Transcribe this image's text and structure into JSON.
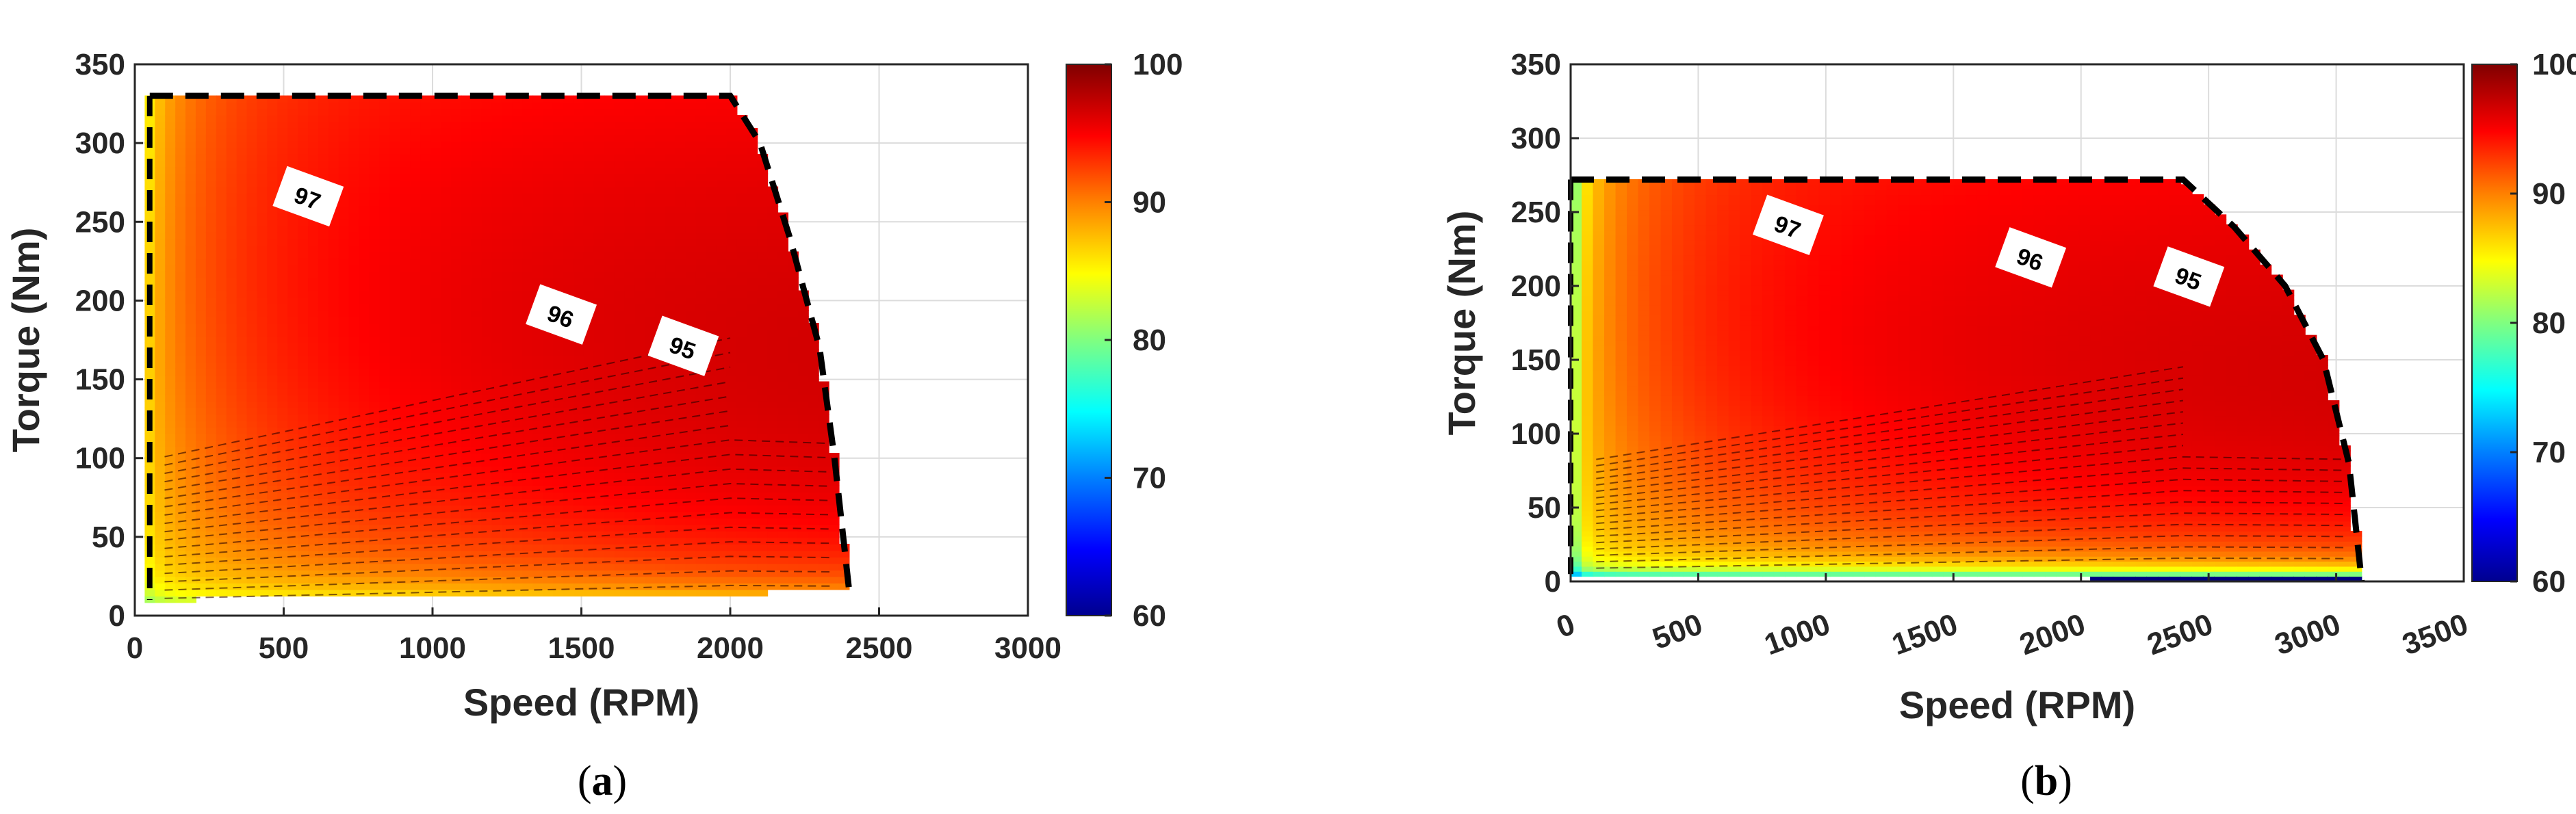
{
  "chart_data": [
    {
      "type": "heatmap",
      "panel_label": "a",
      "xlabel": "Speed (RPM)",
      "ylabel": "Torque (Nm)",
      "xlim": [
        0,
        3000
      ],
      "ylim": [
        0,
        350
      ],
      "xticks": [
        0,
        500,
        1000,
        1500,
        2000,
        2500,
        3000
      ],
      "yticks": [
        0,
        50,
        100,
        150,
        200,
        250,
        300,
        350
      ],
      "colorbar": {
        "min": 60,
        "max": 100,
        "ticks": [
          60,
          70,
          80,
          90,
          100
        ]
      },
      "grid": true,
      "max_torque": 330,
      "base_speed": 2000,
      "max_speed": 2400,
      "envelope": [
        [
          50,
          330
        ],
        [
          2000,
          330
        ],
        [
          2100,
          300
        ],
        [
          2200,
          240
        ],
        [
          2300,
          170
        ],
        [
          2350,
          100
        ],
        [
          2400,
          15
        ],
        [
          50,
          10
        ]
      ],
      "contour_labels": [
        {
          "text": "97",
          "x": 580,
          "y": 265
        },
        {
          "text": "96",
          "x": 1430,
          "y": 190
        },
        {
          "text": "95",
          "x": 1840,
          "y": 170
        }
      ]
    },
    {
      "type": "heatmap",
      "panel_label": "b",
      "xlabel": "Speed (RPM)",
      "ylabel": "Torque (Nm)",
      "xlim": [
        0,
        3500
      ],
      "ylim": [
        0,
        350
      ],
      "xticks": [
        0,
        500,
        1000,
        1500,
        2000,
        2500,
        3000,
        3500
      ],
      "yticks": [
        0,
        50,
        100,
        150,
        200,
        250,
        300,
        350
      ],
      "colorbar": {
        "min": 60,
        "max": 100,
        "ticks": [
          60,
          70,
          80,
          90,
          100
        ]
      },
      "grid": true,
      "max_torque": 272,
      "base_speed": 2400,
      "max_speed": 3100,
      "envelope": [
        [
          0,
          272
        ],
        [
          2400,
          272
        ],
        [
          2600,
          240
        ],
        [
          2800,
          200
        ],
        [
          2950,
          150
        ],
        [
          3050,
          80
        ],
        [
          3100,
          0
        ],
        [
          0,
          5
        ]
      ],
      "contour_labels": [
        {
          "text": "97",
          "x": 850,
          "y": 240
        },
        {
          "text": "96",
          "x": 1800,
          "y": 218
        },
        {
          "text": "95",
          "x": 2420,
          "y": 205
        }
      ]
    }
  ]
}
